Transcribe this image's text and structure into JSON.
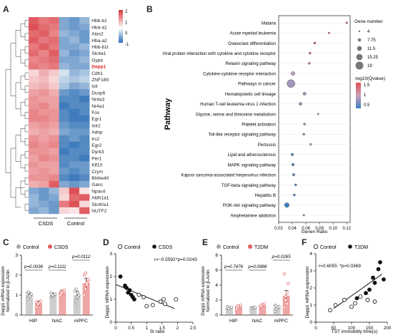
{
  "panel_letters": {
    "a": "A",
    "b": "B",
    "c": "C",
    "d": "D",
    "e": "E",
    "f": "F"
  },
  "colors": {
    "red": "#e05c5c",
    "blue": "#3a7fc6",
    "grey": "#a6a6a6",
    "black": "#111111"
  },
  "panel_a": {
    "genes": [
      "Hbb-b1",
      "Hba-a1",
      "Alas2",
      "Hba-a2",
      "Hbb-b1t",
      "Slc4a1",
      "Gypa",
      "Depp1",
      "Cdh1",
      "ZNF189",
      "Islr",
      "Dusp6",
      "Nr4a3",
      "Nr4a1",
      "Fos",
      "Egr1",
      "Islr2",
      "Adnp",
      "Irs2",
      "Egr2",
      "Dyrk3",
      "Per1",
      "Klf10",
      "Crym",
      "Bhlhe40",
      "Ganc",
      "Npas4",
      "Aldh1a1",
      "Slc40a1",
      "NUTF2"
    ],
    "highlight_gene": "Depp1",
    "group_labels": [
      "CSDS",
      "Control"
    ],
    "colorbar_ticks": [
      "2",
      "1",
      "0",
      "-1"
    ]
  },
  "panel_b": {
    "ylabel": "Pathway",
    "xlabel": "Genen Ratio",
    "legend_size_title": "Gene number",
    "legend_size_values": [
      "4",
      "7.75",
      "11.5",
      "15.25",
      "19"
    ],
    "legend_color_title": "-log10(Qvalue)",
    "legend_color_ticks": [
      "1.5",
      "1",
      "0.5"
    ],
    "x_ticks": [
      "0.02",
      "0.04",
      "0.06",
      "0.08",
      "0.10",
      "0.12"
    ]
  },
  "panel_c": {
    "legend": [
      "Control",
      "CSDS"
    ],
    "ylabel": [
      "Depp1 mRNA expression",
      "Normalized to β-Actin"
    ],
    "pvalues": [
      "p=0.0036",
      "p=0.1111",
      "p=0.0112"
    ]
  },
  "panel_d": {
    "legend": [
      "Control",
      "CSDS"
    ],
    "ylabel": "Depp1 mRNA expression",
    "xlabel": "SI ratio",
    "stats_r": "r=−0.5592",
    "stats_p": "*p=0.0243"
  },
  "panel_e": {
    "legend": [
      "Control",
      "T2DM"
    ],
    "ylabel": [
      "Depp1 mRNA expression",
      "Normalized to β-Actin"
    ],
    "pvalues": [
      "p=0.7476",
      "p=0.0988",
      "p=0.0265"
    ]
  },
  "panel_f": {
    "legend": [
      "Control",
      "T2DM"
    ],
    "ylabel": "Depp1 mRNA expression",
    "xlabel": "TST immobility time(s)",
    "stats_r": "r=0.6055",
    "stats_p": "*p=0.0369"
  },
  "chart_data": [
    {
      "type": "heatmap",
      "panel": "A",
      "columns": 6,
      "groups": [
        "CSDS",
        "Control"
      ],
      "colorbar_range": [
        -1,
        2
      ],
      "rows": [
        "Hbb-b1",
        "Hba-a1",
        "Alas2",
        "Hba-a2",
        "Hbb-b1t",
        "Slc4a1",
        "Gypa",
        "Depp1",
        "Cdh1",
        "ZNF189",
        "Islr",
        "Dusp6",
        "Nr4a3",
        "Nr4a1",
        "Fos",
        "Egr1",
        "Islr2",
        "Adnp",
        "Irs2",
        "Egr2",
        "Dyrk3",
        "Per1",
        "Klf10",
        "Crym",
        "Bhlhe40",
        "Ganc",
        "Npas4",
        "Aldh1a1",
        "Slc40a1",
        "NUTF2"
      ],
      "values": [
        [
          1.2,
          1.0,
          1.1,
          -0.6,
          -0.7,
          -0.5
        ],
        [
          1.3,
          1.1,
          1.0,
          -0.6,
          -0.7,
          -0.6
        ],
        [
          1.1,
          1.2,
          0.9,
          -0.5,
          -0.6,
          -0.7
        ],
        [
          1.2,
          1.0,
          1.1,
          -0.6,
          -0.5,
          -0.7
        ],
        [
          1.0,
          1.2,
          1.0,
          -0.6,
          -0.6,
          -0.5
        ],
        [
          1.1,
          0.9,
          1.2,
          -0.5,
          -0.7,
          -0.6
        ],
        [
          0.9,
          1.0,
          1.1,
          -0.6,
          -0.6,
          -0.5
        ],
        [
          1.0,
          0.9,
          1.0,
          -0.5,
          -0.6,
          -0.6
        ],
        [
          0.3,
          0.6,
          0.4,
          -0.2,
          -0.5,
          -0.4
        ],
        [
          0.4,
          0.5,
          0.3,
          -0.3,
          -0.4,
          -0.3
        ],
        [
          0.5,
          0.6,
          0.4,
          -0.4,
          -0.6,
          -0.5
        ],
        [
          0.7,
          0.8,
          0.6,
          -0.7,
          -0.8,
          -0.7
        ],
        [
          0.8,
          0.7,
          0.7,
          -0.8,
          -0.8,
          -0.9
        ],
        [
          0.8,
          0.9,
          0.7,
          -0.9,
          -0.8,
          -0.8
        ],
        [
          0.9,
          0.8,
          0.8,
          -0.8,
          -0.9,
          -0.8
        ],
        [
          0.9,
          0.9,
          0.8,
          -0.8,
          -0.9,
          -0.9
        ],
        [
          0.7,
          0.8,
          0.7,
          -0.7,
          -0.8,
          -0.8
        ],
        [
          0.6,
          0.7,
          0.6,
          -0.6,
          -0.7,
          -0.7
        ],
        [
          0.8,
          0.7,
          0.8,
          -0.8,
          -0.7,
          -0.8
        ],
        [
          0.9,
          0.8,
          0.9,
          -0.8,
          -0.9,
          -0.8
        ],
        [
          0.8,
          0.8,
          0.7,
          -0.9,
          -0.8,
          -0.8
        ],
        [
          0.7,
          0.9,
          0.8,
          -0.8,
          -0.8,
          -0.9
        ],
        [
          0.8,
          0.7,
          0.7,
          -0.8,
          -0.7,
          -0.7
        ],
        [
          0.7,
          0.8,
          0.7,
          -0.7,
          -0.8,
          -0.7
        ],
        [
          0.8,
          0.8,
          0.9,
          -0.8,
          -0.9,
          -0.8
        ],
        [
          0.6,
          0.7,
          1.2,
          -0.6,
          -0.7,
          -0.6
        ],
        [
          -0.6,
          -0.7,
          -0.5,
          0.4,
          1.3,
          0.2
        ],
        [
          -0.5,
          -0.7,
          -0.6,
          0.3,
          1.1,
          1.2
        ],
        [
          -0.5,
          -0.6,
          -0.7,
          1.0,
          1.3,
          0.3
        ],
        [
          -0.6,
          -0.5,
          -0.7,
          0.3,
          0.2,
          1.2
        ]
      ]
    },
    {
      "type": "scatter",
      "panel": "B",
      "pathways": [
        "Malaria",
        "Acute myeloid leukemia",
        "Osteoclast differentiation",
        "Viral protein interaction with cytokine and cytokine receptor",
        "Relaxin signaling pathway",
        "Cytokine-cytokine receptor interaction",
        "Pathways in cancer",
        "Hematopoietic cell lineage",
        "Human T-cell leukemia virus 1 infection",
        "Glycine, serine and threonine metabolism",
        "Platelet activation",
        "Toll-like receptor signaling pathway",
        "Pertussis",
        "Lipid and atherosclerosis",
        "MAPK signaling pathway",
        "Kaposi sarcoma-associated herpesvirus infection",
        "TGF-beta signaling pathway",
        "Hepatitis B",
        "PI3K-Akt signaling pathway",
        "Amphetamine addiction"
      ],
      "gene_ratio": [
        0.12,
        0.094,
        0.073,
        0.066,
        0.065,
        0.041,
        0.038,
        0.058,
        0.052,
        0.078,
        0.058,
        0.057,
        0.067,
        0.04,
        0.041,
        0.042,
        0.045,
        0.043,
        0.032,
        0.057
      ],
      "gene_number": [
        4,
        4,
        5,
        5,
        5,
        9,
        19,
        7,
        7,
        4,
        5,
        5,
        5,
        6,
        6,
        6,
        5,
        5,
        11,
        4
      ],
      "neg_log10_q": [
        1.6,
        1.4,
        1.5,
        1.4,
        1.3,
        1.0,
        0.9,
        0.9,
        0.9,
        1.0,
        0.8,
        0.8,
        1.0,
        0.6,
        0.6,
        0.7,
        0.6,
        0.6,
        0.5,
        0.7
      ],
      "xlim": [
        0.02,
        0.125
      ],
      "ylabel": "Pathway",
      "xlabel": "Genen Ratio"
    },
    {
      "type": "bar",
      "panel": "C",
      "categories": [
        "HIP",
        "NAC",
        "mPFC"
      ],
      "series": [
        {
          "name": "Control",
          "values": [
            1.0,
            1.0,
            1.0
          ],
          "errors": [
            0.12,
            0.1,
            0.18
          ],
          "points": [
            [
              0.8,
              0.9,
              1.0,
              1.05,
              1.1,
              1.15,
              0.95
            ],
            [
              0.9,
              0.95,
              1.0,
              1.05,
              1.1,
              1.0
            ],
            [
              0.5,
              0.7,
              0.9,
              1.0,
              1.2,
              1.3,
              1.1,
              1.0
            ]
          ]
        },
        {
          "name": "CSDS",
          "values": [
            0.6,
            1.15,
            1.6
          ],
          "errors": [
            0.1,
            0.1,
            0.25
          ],
          "points": [
            [
              0.4,
              0.5,
              0.6,
              0.7,
              0.65,
              0.55
            ],
            [
              1.0,
              1.1,
              1.2,
              1.25,
              1.15,
              1.1
            ],
            [
              1.0,
              1.3,
              1.5,
              1.7,
              2.0,
              2.1,
              1.6,
              1.8
            ]
          ]
        }
      ],
      "ylim": [
        0,
        3
      ],
      "yticks": [
        0,
        1,
        2,
        3
      ]
    },
    {
      "type": "scatter",
      "panel": "D",
      "series": [
        {
          "name": "Control",
          "x": [
            0.9,
            1.0,
            1.2,
            1.45,
            1.55,
            1.6,
            1.95,
            0.75
          ],
          "y": [
            1.1,
            0.7,
            0.75,
            0.9,
            1.0,
            0.8,
            1.0,
            1.2
          ]
        },
        {
          "name": "CSDS",
          "x": [
            0.15,
            0.3,
            0.35,
            0.4,
            0.45,
            0.5,
            0.55,
            0.6
          ],
          "y": [
            2.0,
            1.6,
            1.5,
            1.3,
            1.4,
            1.2,
            1.1,
            1.0
          ]
        }
      ],
      "trendline": {
        "x": [
          0,
          1.9
        ],
        "y": [
          1.65,
          0.6
        ]
      },
      "xlim": [
        0,
        2.5
      ],
      "ylim": [
        0,
        3
      ],
      "xticks": [
        0,
        0.5,
        1.0,
        1.5,
        2.0,
        2.5
      ],
      "yticks": [
        0,
        1,
        2,
        3
      ]
    },
    {
      "type": "bar",
      "panel": "E",
      "categories": [
        "HIP",
        "NAC",
        "mPFC"
      ],
      "series": [
        {
          "name": "Control",
          "values": [
            1.0,
            1.0,
            1.0
          ],
          "errors": [
            0.1,
            0.08,
            0.2
          ],
          "points": [
            [
              0.9,
              0.95,
              1.0,
              1.05,
              1.1,
              0.85
            ],
            [
              0.95,
              1.0,
              1.05,
              1.0,
              0.9
            ],
            [
              0.5,
              0.8,
              1.0,
              1.1,
              1.3,
              1.2
            ]
          ]
        },
        {
          "name": "T2DM",
          "values": [
            1.1,
            1.3,
            2.6
          ],
          "errors": [
            0.15,
            0.12,
            0.7
          ],
          "points": [
            [
              0.8,
              1.0,
              1.2,
              1.3,
              1.1,
              1.2
            ],
            [
              1.1,
              1.2,
              1.4,
              1.5,
              1.3
            ],
            [
              1.0,
              2.0,
              3.0,
              4.2,
              5.5,
              2.5,
              1.5
            ]
          ]
        }
      ],
      "ylim": [
        0,
        8
      ],
      "yticks": [
        0,
        2,
        4,
        6,
        8
      ]
    },
    {
      "type": "scatter",
      "panel": "F",
      "series": [
        {
          "name": "Control",
          "x": [
            55,
            80,
            100,
            110,
            125,
            145,
            165,
            40
          ],
          "y": [
            1.0,
            1.3,
            0.9,
            1.1,
            1.5,
            1.3,
            1.2,
            0.7
          ]
        },
        {
          "name": "T2DM",
          "x": [
            115,
            140,
            150,
            160,
            165,
            175,
            180,
            190
          ],
          "y": [
            1.4,
            1.7,
            1.9,
            2.6,
            2.3,
            3.1,
            3.5,
            2.5
          ]
        }
      ],
      "trendline": {
        "x": [
          50,
          185
        ],
        "y": [
          0.8,
          2.8
        ]
      },
      "xlim": [
        0,
        200
      ],
      "ylim": [
        0,
        4
      ],
      "xticks": [
        0,
        50,
        100,
        150,
        200
      ],
      "yticks": [
        0,
        1,
        2,
        3,
        4
      ]
    }
  ]
}
